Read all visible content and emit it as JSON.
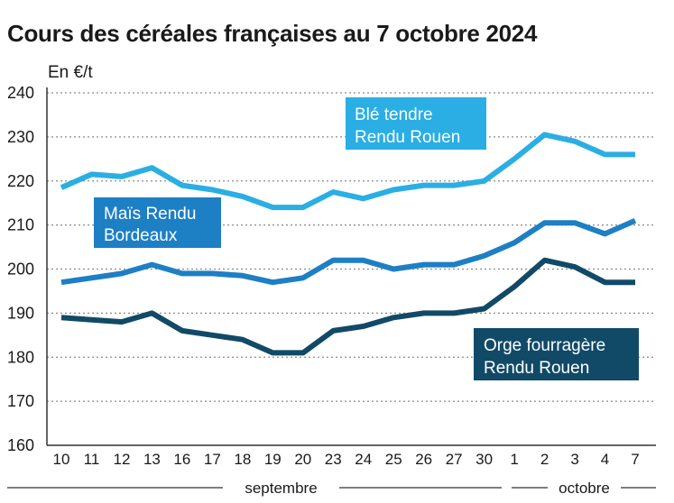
{
  "title": "Cours des céréales françaises au 7 octobre 2024",
  "chart_data": {
    "type": "line",
    "title": "Cours des céréales françaises au 7 octobre 2024",
    "ylabel": "En €/t",
    "xlabel": "",
    "ylim": [
      160,
      240
    ],
    "yticks": [
      160,
      170,
      180,
      190,
      200,
      210,
      220,
      230,
      240
    ],
    "grid": "horizontal dotted",
    "categories": [
      "10",
      "11",
      "12",
      "13",
      "16",
      "17",
      "18",
      "19",
      "20",
      "23",
      "24",
      "25",
      "26",
      "27",
      "30",
      "1",
      "2",
      "3",
      "4",
      "7"
    ],
    "month_groups": [
      {
        "label": "septembre",
        "from": 0,
        "to": 14
      },
      {
        "label": "octobre",
        "from": 15,
        "to": 19
      }
    ],
    "series": [
      {
        "name": "Blé tendre Rendu Rouen",
        "label_lines": [
          "Blé tendre",
          "Rendu Rouen"
        ],
        "color": "#2aaee3",
        "values": [
          218.5,
          221.5,
          221,
          223,
          219,
          218,
          216.5,
          214,
          214,
          217.5,
          216,
          218,
          219,
          219,
          220,
          225,
          230.5,
          229,
          226,
          226
        ]
      },
      {
        "name": "Maïs Rendu Bordeaux",
        "label_lines": [
          "Maïs Rendu",
          "Bordeaux"
        ],
        "color": "#1d7fc4",
        "values": [
          197,
          198,
          199,
          201,
          199,
          199,
          198.5,
          197,
          198,
          202,
          202,
          200,
          201,
          201,
          203,
          206,
          210.5,
          210.5,
          208,
          211
        ]
      },
      {
        "name": "Orge fourragère Rendu Rouen",
        "label_lines": [
          "Orge fourragère",
          "Rendu Rouen"
        ],
        "color": "#114a67",
        "values": [
          189,
          188.5,
          188,
          190,
          186,
          185,
          184,
          181,
          181,
          186,
          187,
          189,
          190,
          190,
          191,
          196,
          202,
          200.5,
          197,
          197
        ]
      }
    ]
  }
}
